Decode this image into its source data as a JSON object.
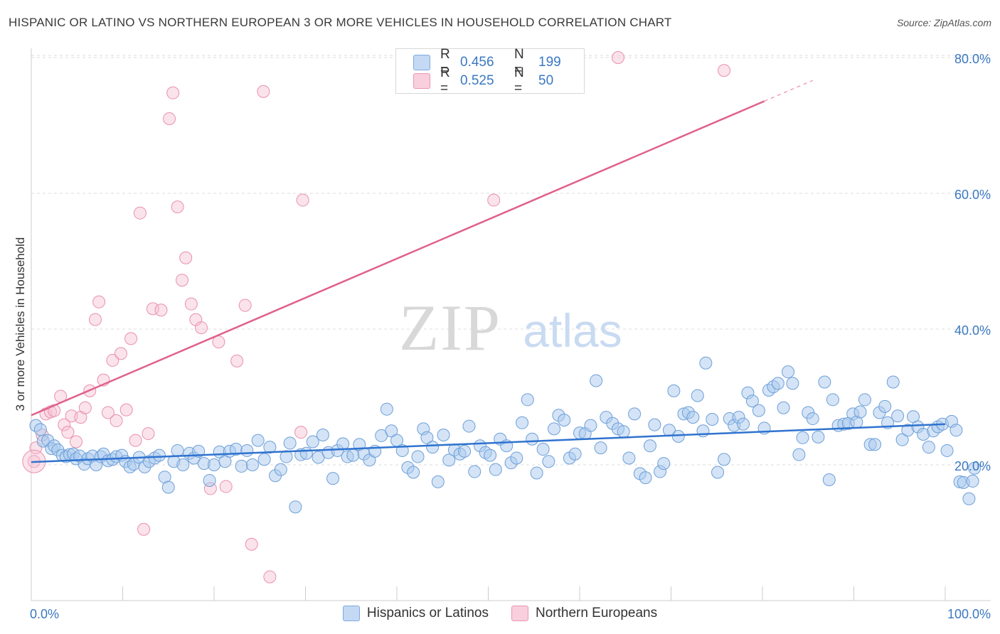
{
  "title": "HISPANIC OR LATINO VS NORTHERN EUROPEAN 3 OR MORE VEHICLES IN HOUSEHOLD CORRELATION CHART",
  "source": "Source: ZipAtlas.com",
  "watermark": {
    "zip": "ZIP",
    "atlas": "atlas"
  },
  "legend": {
    "r_label": "R =",
    "n_label": "N =",
    "rows": [
      {
        "r": "0.456",
        "n": "199"
      },
      {
        "r": "0.525",
        "n": "50"
      }
    ]
  },
  "colors": {
    "blue_fill": "#aac9ee",
    "blue_stroke": "#6d9fd8",
    "blue_line": "#2f73cf",
    "pink_fill": "#f7c0d2",
    "pink_stroke": "#e891ad",
    "pink_line": "#e0608d",
    "axis_text": "#3a78c2",
    "grid": "#dcdcdc"
  },
  "chart_data": {
    "type": "scatter",
    "title": "HISPANIC OR LATINO VS NORTHERN EUROPEAN 3 OR MORE VEHICLES IN HOUSEHOLD CORRELATION CHART",
    "xlabel": "",
    "ylabel": "3 or more Vehicles in Household",
    "xlim": [
      0,
      100
    ],
    "ylim": [
      0,
      82
    ],
    "x_tick_labels": [
      "0.0%",
      "100.0%"
    ],
    "y_ticks": [
      20,
      40,
      60,
      80
    ],
    "y_tick_labels": [
      "20.0%",
      "40.0%",
      "60.0%",
      "80.0%"
    ],
    "legend_position": "bottom-center",
    "series": [
      {
        "name": "Hispanics or Latinos",
        "R": 0.456,
        "N": 199,
        "trend": {
          "x": [
            0,
            100
          ],
          "y": [
            20.4,
            26.0
          ]
        },
        "points": [
          [
            0.5,
            25.8
          ],
          [
            1.0,
            25.2
          ],
          [
            1.3,
            23.5
          ],
          [
            1.8,
            23.6
          ],
          [
            2.2,
            22.4
          ],
          [
            2.5,
            22.8
          ],
          [
            2.9,
            22.2
          ],
          [
            3.4,
            21.4
          ],
          [
            3.8,
            21.2
          ],
          [
            4.2,
            21.5
          ],
          [
            4.6,
            21.6
          ],
          [
            4.9,
            20.9
          ],
          [
            5.3,
            21.3
          ],
          [
            5.8,
            20.1
          ],
          [
            6.2,
            20.9
          ],
          [
            6.7,
            21.3
          ],
          [
            7.1,
            20.0
          ],
          [
            7.6,
            21.2
          ],
          [
            7.9,
            21.6
          ],
          [
            8.4,
            20.6
          ],
          [
            8.9,
            20.8
          ],
          [
            9.3,
            21.2
          ],
          [
            9.9,
            21.4
          ],
          [
            10.3,
            20.5
          ],
          [
            10.8,
            19.7
          ],
          [
            11.2,
            20.1
          ],
          [
            11.8,
            21.1
          ],
          [
            12.4,
            19.7
          ],
          [
            12.9,
            20.5
          ],
          [
            13.5,
            21.0
          ],
          [
            14.0,
            21.4
          ],
          [
            14.6,
            18.2
          ],
          [
            15.0,
            16.7
          ],
          [
            15.6,
            20.5
          ],
          [
            16.0,
            22.1
          ],
          [
            16.6,
            20.0
          ],
          [
            17.3,
            21.7
          ],
          [
            17.8,
            21.0
          ],
          [
            18.3,
            22.0
          ],
          [
            18.9,
            20.2
          ],
          [
            19.5,
            17.7
          ],
          [
            20.0,
            20.0
          ],
          [
            20.6,
            21.9
          ],
          [
            21.2,
            20.5
          ],
          [
            21.7,
            22.0
          ],
          [
            22.4,
            22.3
          ],
          [
            23.0,
            19.8
          ],
          [
            23.6,
            22.1
          ],
          [
            24.2,
            20.0
          ],
          [
            24.8,
            23.6
          ],
          [
            25.5,
            20.8
          ],
          [
            26.1,
            22.6
          ],
          [
            26.7,
            18.4
          ],
          [
            27.3,
            19.3
          ],
          [
            27.9,
            21.2
          ],
          [
            28.3,
            23.2
          ],
          [
            28.9,
            13.8
          ],
          [
            29.5,
            21.5
          ],
          [
            30.1,
            21.7
          ],
          [
            30.8,
            23.4
          ],
          [
            31.4,
            21.1
          ],
          [
            31.9,
            24.4
          ],
          [
            32.5,
            21.8
          ],
          [
            33.0,
            18.0
          ],
          [
            33.5,
            22.1
          ],
          [
            34.1,
            23.1
          ],
          [
            34.6,
            21.2
          ],
          [
            35.2,
            21.4
          ],
          [
            35.9,
            23.0
          ],
          [
            36.4,
            21.6
          ],
          [
            37.0,
            20.7
          ],
          [
            37.6,
            22.0
          ],
          [
            38.3,
            24.3
          ],
          [
            38.9,
            28.2
          ],
          [
            39.4,
            25.0
          ],
          [
            40.0,
            23.6
          ],
          [
            40.6,
            22.1
          ],
          [
            41.2,
            19.6
          ],
          [
            41.8,
            18.9
          ],
          [
            42.3,
            21.2
          ],
          [
            42.9,
            25.3
          ],
          [
            43.3,
            24.0
          ],
          [
            43.9,
            22.6
          ],
          [
            44.5,
            17.5
          ],
          [
            45.1,
            24.4
          ],
          [
            45.7,
            20.7
          ],
          [
            46.3,
            22.2
          ],
          [
            46.9,
            21.6
          ],
          [
            47.4,
            22.0
          ],
          [
            47.9,
            25.7
          ],
          [
            48.5,
            19.0
          ],
          [
            49.1,
            22.8
          ],
          [
            49.7,
            21.8
          ],
          [
            50.2,
            21.4
          ],
          [
            50.8,
            19.3
          ],
          [
            51.3,
            23.8
          ],
          [
            52.0,
            22.8
          ],
          [
            52.5,
            20.3
          ],
          [
            53.1,
            21.0
          ],
          [
            53.7,
            26.2
          ],
          [
            54.3,
            29.6
          ],
          [
            54.8,
            23.8
          ],
          [
            55.3,
            18.8
          ],
          [
            56.0,
            22.3
          ],
          [
            56.6,
            20.5
          ],
          [
            57.2,
            25.3
          ],
          [
            57.7,
            27.3
          ],
          [
            58.3,
            26.6
          ],
          [
            58.9,
            21.0
          ],
          [
            59.5,
            21.6
          ],
          [
            60.0,
            24.7
          ],
          [
            60.6,
            24.6
          ],
          [
            61.2,
            25.8
          ],
          [
            61.8,
            32.4
          ],
          [
            62.3,
            22.5
          ],
          [
            62.9,
            27.0
          ],
          [
            63.6,
            26.1
          ],
          [
            64.2,
            25.3
          ],
          [
            64.8,
            24.9
          ],
          [
            65.4,
            21.0
          ],
          [
            66.0,
            27.5
          ],
          [
            66.6,
            18.7
          ],
          [
            67.2,
            18.1
          ],
          [
            67.7,
            22.8
          ],
          [
            68.2,
            25.9
          ],
          [
            68.8,
            19.0
          ],
          [
            69.2,
            20.2
          ],
          [
            69.8,
            25.1
          ],
          [
            70.3,
            30.9
          ],
          [
            70.8,
            24.2
          ],
          [
            71.4,
            27.5
          ],
          [
            71.9,
            27.7
          ],
          [
            72.4,
            27.0
          ],
          [
            72.9,
            30.2
          ],
          [
            73.5,
            25.0
          ],
          [
            73.8,
            35.0
          ],
          [
            74.5,
            26.7
          ],
          [
            75.1,
            18.9
          ],
          [
            75.8,
            20.8
          ],
          [
            76.4,
            26.8
          ],
          [
            76.9,
            25.8
          ],
          [
            77.4,
            27.0
          ],
          [
            77.9,
            26.0
          ],
          [
            78.4,
            30.6
          ],
          [
            78.9,
            29.4
          ],
          [
            79.6,
            28.0
          ],
          [
            80.2,
            25.4
          ],
          [
            80.7,
            31.0
          ],
          [
            81.2,
            31.5
          ],
          [
            81.7,
            32.0
          ],
          [
            82.3,
            28.4
          ],
          [
            82.8,
            33.7
          ],
          [
            83.3,
            32.0
          ],
          [
            84.0,
            21.5
          ],
          [
            84.4,
            24.0
          ],
          [
            85.0,
            27.7
          ],
          [
            85.5,
            26.8
          ],
          [
            86.1,
            24.1
          ],
          [
            86.8,
            32.2
          ],
          [
            87.3,
            17.8
          ],
          [
            87.7,
            29.6
          ],
          [
            88.3,
            25.8
          ],
          [
            88.9,
            26.0
          ],
          [
            89.4,
            26.1
          ],
          [
            89.9,
            27.5
          ],
          [
            90.3,
            26.3
          ],
          [
            90.7,
            27.8
          ],
          [
            91.2,
            29.6
          ],
          [
            91.8,
            23.0
          ],
          [
            92.3,
            23.0
          ],
          [
            92.8,
            27.7
          ],
          [
            93.4,
            28.6
          ],
          [
            93.7,
            26.2
          ],
          [
            94.3,
            32.2
          ],
          [
            94.8,
            27.2
          ],
          [
            95.3,
            23.7
          ],
          [
            95.9,
            25.1
          ],
          [
            96.5,
            27.1
          ],
          [
            97.0,
            25.6
          ],
          [
            97.6,
            24.5
          ],
          [
            98.2,
            22.6
          ],
          [
            98.7,
            25.0
          ],
          [
            99.2,
            25.6
          ],
          [
            99.7,
            26.0
          ],
          [
            100.2,
            22.1
          ],
          [
            100.7,
            26.4
          ],
          [
            101.2,
            25.1
          ],
          [
            101.6,
            17.5
          ],
          [
            102.0,
            17.4
          ],
          [
            102.6,
            15.0
          ],
          [
            103.2,
            19.5
          ],
          [
            103.0,
            17.6
          ]
        ]
      },
      {
        "name": "Northern Europeans",
        "R": 0.525,
        "N": 50,
        "trend": {
          "x": [
            0,
            100
          ],
          "y": [
            27.3,
            85.0
          ]
        },
        "points": [
          [
            0.3,
            20.5
          ],
          [
            0.5,
            22.5
          ],
          [
            1.2,
            24.4
          ],
          [
            1.6,
            27.5
          ],
          [
            2.1,
            27.8
          ],
          [
            2.5,
            28.0
          ],
          [
            3.2,
            30.1
          ],
          [
            3.6,
            25.9
          ],
          [
            4.0,
            24.8
          ],
          [
            4.4,
            27.2
          ],
          [
            4.9,
            23.4
          ],
          [
            5.4,
            27.0
          ],
          [
            5.9,
            28.4
          ],
          [
            6.4,
            30.9
          ],
          [
            7.0,
            41.4
          ],
          [
            7.4,
            44.0
          ],
          [
            7.9,
            32.5
          ],
          [
            8.4,
            27.7
          ],
          [
            8.9,
            35.4
          ],
          [
            9.3,
            26.5
          ],
          [
            9.8,
            36.4
          ],
          [
            10.4,
            28.1
          ],
          [
            10.9,
            38.6
          ],
          [
            11.4,
            23.6
          ],
          [
            11.9,
            57.1
          ],
          [
            12.3,
            10.5
          ],
          [
            12.8,
            24.6
          ],
          [
            13.3,
            43.0
          ],
          [
            14.2,
            42.8
          ],
          [
            15.1,
            71.0
          ],
          [
            15.5,
            74.8
          ],
          [
            16.0,
            58.0
          ],
          [
            16.5,
            47.2
          ],
          [
            16.9,
            50.5
          ],
          [
            17.5,
            43.7
          ],
          [
            18.0,
            41.4
          ],
          [
            18.6,
            40.2
          ],
          [
            19.6,
            16.5
          ],
          [
            20.5,
            38.1
          ],
          [
            21.3,
            16.8
          ],
          [
            22.5,
            35.3
          ],
          [
            23.4,
            43.5
          ],
          [
            24.1,
            8.3
          ],
          [
            25.4,
            75.0
          ],
          [
            26.1,
            3.5
          ],
          [
            29.5,
            24.8
          ],
          [
            29.7,
            59.0
          ],
          [
            50.6,
            59.0
          ],
          [
            64.2,
            80.0
          ],
          [
            75.8,
            78.1
          ]
        ]
      }
    ]
  }
}
